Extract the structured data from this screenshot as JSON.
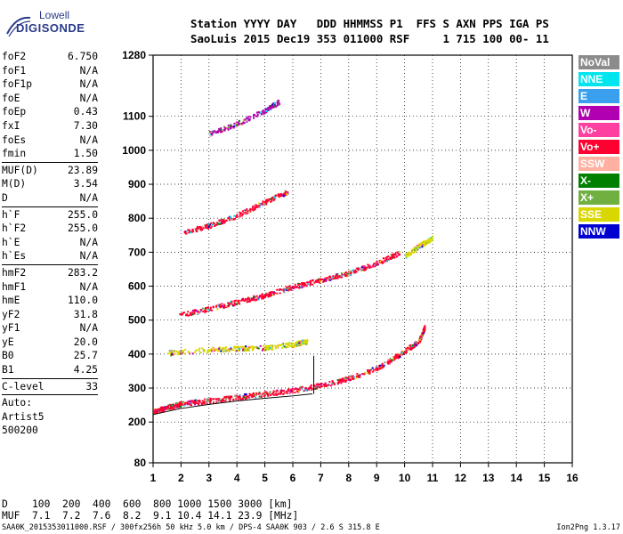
{
  "logo": {
    "line1": "Lowell",
    "line2": "DIGISONDE"
  },
  "header": {
    "labels": "Station YYYY DAY   DDD HHMMSS P1  FFS S AXN PPS IGA PS",
    "values": "SaoLuis 2015 Dec19 353 011000 RSF     1 715 100 00- 11"
  },
  "params": [
    {
      "label": "foF2",
      "value": "6.750"
    },
    {
      "label": "foF1",
      "value": "N/A"
    },
    {
      "label": "foF1p",
      "value": "N/A"
    },
    {
      "label": "foE",
      "value": "N/A"
    },
    {
      "label": "foEp",
      "value": "0.43"
    },
    {
      "label": "fxI",
      "value": "7.30"
    },
    {
      "label": "foEs",
      "value": "N/A"
    },
    {
      "label": "fmin",
      "value": "1.50"
    },
    {
      "sep": true
    },
    {
      "label": "MUF(D)",
      "value": "23.89"
    },
    {
      "label": "M(D)",
      "value": "3.54"
    },
    {
      "label": "D",
      "value": "N/A"
    },
    {
      "sep": true
    },
    {
      "label": "h`F",
      "value": "255.0"
    },
    {
      "label": "h`F2",
      "value": "255.0"
    },
    {
      "label": "h`E",
      "value": "N/A"
    },
    {
      "label": "h`Es",
      "value": "N/A"
    },
    {
      "sep": true
    },
    {
      "label": "hmF2",
      "value": "283.2"
    },
    {
      "label": "hmF1",
      "value": "N/A"
    },
    {
      "label": "hmE",
      "value": "110.0"
    },
    {
      "label": "yF2",
      "value": "31.8"
    },
    {
      "label": "yF1",
      "value": "N/A"
    },
    {
      "label": "yE",
      "value": "20.0"
    },
    {
      "label": "B0",
      "value": "25.7"
    },
    {
      "label": "B1",
      "value": "4.25"
    },
    {
      "sep": true
    },
    {
      "label": "C-level",
      "value": "33"
    },
    {
      "sep": true
    },
    {
      "text": "Auto:"
    },
    {
      "text": "Artist5"
    },
    {
      "text": "500200"
    }
  ],
  "legend": [
    {
      "label": "NoVal",
      "color": "#8c8c8c"
    },
    {
      "label": "NNE",
      "color": "#00e5ee"
    },
    {
      "label": "E",
      "color": "#3aa0ee"
    },
    {
      "label": "W",
      "color": "#b000b0"
    },
    {
      "label": "Vo-",
      "color": "#ff40a0"
    },
    {
      "label": "Vo+",
      "color": "#ff0030"
    },
    {
      "label": "SSW",
      "color": "#ffb0a0"
    },
    {
      "label": "X-",
      "color": "#008000"
    },
    {
      "label": "X+",
      "color": "#70b040"
    },
    {
      "label": "SSE",
      "color": "#d8d800"
    },
    {
      "label": "NNW",
      "color": "#0000d0"
    }
  ],
  "muf": {
    "d_line": "D    100  200  400  600  800 1000 1500 3000 [km]",
    "muf_line": "MUF  7.1  7.2  7.6  8.2  9.1 10.4 14.1 23.9 [MHz]"
  },
  "footer": {
    "left": "SAA0K_2015353011000.RSF / 300fx256h 50 kHz 5.0 km / DPS-4 SAA0K 903 / 2.6 S 315.8 E",
    "right": "Ion2Png 1.3.17"
  },
  "chart_data": {
    "type": "scatter",
    "xlim": [
      1,
      16
    ],
    "ylim": [
      80,
      1280
    ],
    "x_ticks": [
      1,
      2,
      3,
      4,
      5,
      6,
      7,
      8,
      9,
      10,
      11,
      12,
      13,
      14,
      15,
      16
    ],
    "y_ticks": [
      80,
      200,
      300,
      400,
      500,
      600,
      700,
      800,
      900,
      1000,
      1100,
      1280
    ],
    "grid": true,
    "traces": [
      {
        "color": "#ff0030",
        "points": [
          [
            1.0,
            232
          ],
          [
            1.5,
            245
          ],
          [
            2,
            255
          ],
          [
            3,
            265
          ],
          [
            4,
            275
          ],
          [
            5,
            285
          ],
          [
            6,
            295
          ],
          [
            7,
            310
          ],
          [
            8,
            330
          ],
          [
            9,
            360
          ],
          [
            9.8,
            400
          ],
          [
            10.5,
            440
          ],
          [
            10.7,
            480
          ]
        ]
      },
      {
        "color": "#ff0030",
        "points": [
          [
            1.9,
            515
          ],
          [
            3,
            535
          ],
          [
            4,
            555
          ],
          [
            5,
            575
          ],
          [
            6,
            600
          ],
          [
            7,
            620
          ],
          [
            8,
            640
          ],
          [
            9,
            670
          ],
          [
            9.8,
            700
          ]
        ]
      },
      {
        "color": "#ff0030",
        "points": [
          [
            2.1,
            760
          ],
          [
            3,
            780
          ],
          [
            4,
            810
          ],
          [
            5,
            850
          ],
          [
            5.8,
            880
          ]
        ]
      },
      {
        "color": "#b000b0",
        "points": [
          [
            3.0,
            1050
          ],
          [
            4,
            1080
          ],
          [
            5,
            1120
          ],
          [
            5.5,
            1145
          ]
        ]
      },
      {
        "color": "#d8d800",
        "points": [
          [
            1.5,
            405
          ],
          [
            3,
            415
          ],
          [
            4,
            418
          ],
          [
            5,
            420
          ],
          [
            6,
            430
          ],
          [
            6.5,
            440
          ]
        ]
      },
      {
        "color": "#d8d800",
        "points": [
          [
            10,
            690
          ],
          [
            10.5,
            720
          ],
          [
            11,
            745
          ]
        ]
      }
    ],
    "fit_curve": [
      [
        1.0,
        222
      ],
      [
        2,
        240
      ],
      [
        3,
        252
      ],
      [
        4,
        262
      ],
      [
        5,
        270
      ],
      [
        6,
        277
      ],
      [
        6.7,
        283
      ]
    ],
    "fit_vertical": [
      [
        6.75,
        283
      ],
      [
        6.75,
        395
      ]
    ]
  }
}
